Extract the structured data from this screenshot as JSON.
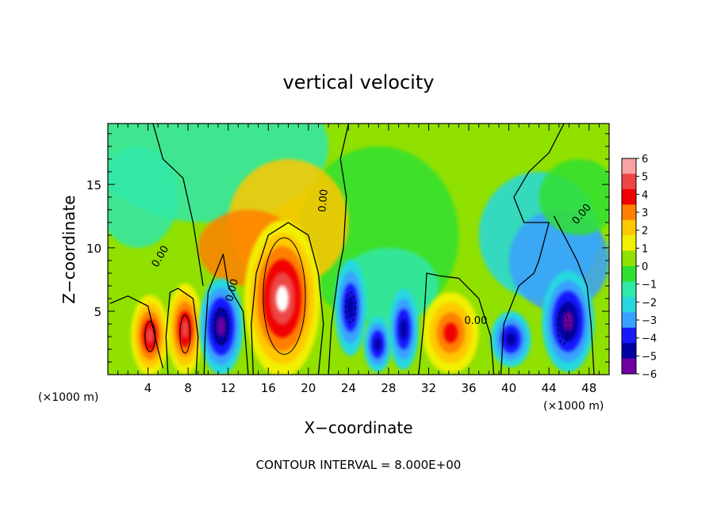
{
  "chart_data": {
    "type": "heatmap",
    "title": "vertical velocity",
    "xlabel": "X−coordinate",
    "ylabel": "Z−coordinate",
    "x_unit_label": "(×1000 m)",
    "y_unit_label": "(×1000 m)",
    "xlim": [
      0,
      50
    ],
    "ylim": [
      0,
      19.8
    ],
    "x_ticks": [
      4,
      8,
      12,
      16,
      20,
      24,
      28,
      32,
      36,
      40,
      44,
      48
    ],
    "x_tick_labels": [
      "4",
      "8",
      "12",
      "16",
      "20",
      "24",
      "28",
      "32",
      "36",
      "40",
      "44",
      "48"
    ],
    "y_ticks": [
      5,
      10,
      15
    ],
    "y_tick_labels": [
      "5",
      "10",
      "15"
    ],
    "contour_interval_text": "CONTOUR INTERVAL = 8.000E+00",
    "zero_contour_label": "0.00",
    "colorbar": {
      "levels": [
        6,
        5,
        4,
        3,
        2,
        1,
        0,
        -1,
        -2,
        -3,
        -4,
        -5,
        -6
      ],
      "tick_labels": [
        "6",
        "5",
        "4",
        "3",
        "2",
        "1",
        "0",
        "−1",
        "−2",
        "−3",
        "−4",
        "−5",
        "−6"
      ],
      "colors": [
        "#f7a3a3",
        "#ee4444",
        "#f00000",
        "#ff8000",
        "#ffc800",
        "#f0f000",
        "#90e000",
        "#30e030",
        "#30e8a8",
        "#28d8e0",
        "#3aa0ff",
        "#1818ff",
        "#0000a0",
        "#7000a0"
      ]
    },
    "features": [
      {
        "sign": "up",
        "x": 4.2,
        "z": 3.1,
        "peak": 10
      },
      {
        "sign": "up",
        "x": 7.7,
        "z": 3.6,
        "peak": 9
      },
      {
        "sign": "down",
        "x": 11.3,
        "z": 3.8,
        "peak": -9
      },
      {
        "sign": "up",
        "x": 17.4,
        "z": 6.0,
        "peak": 14
      },
      {
        "sign": "down",
        "x": 24.2,
        "z": 5.3,
        "peak": -8
      },
      {
        "sign": "down",
        "x": 26.9,
        "z": 2.4,
        "peak": -7
      },
      {
        "sign": "down",
        "x": 29.5,
        "z": 3.6,
        "peak": -8
      },
      {
        "sign": "up",
        "x": 34.2,
        "z": 3.3,
        "peak": 8
      },
      {
        "sign": "down",
        "x": 40.2,
        "z": 2.8,
        "peak": -5
      },
      {
        "sign": "down",
        "x": 45.9,
        "z": 4.2,
        "peak": -9
      }
    ]
  }
}
